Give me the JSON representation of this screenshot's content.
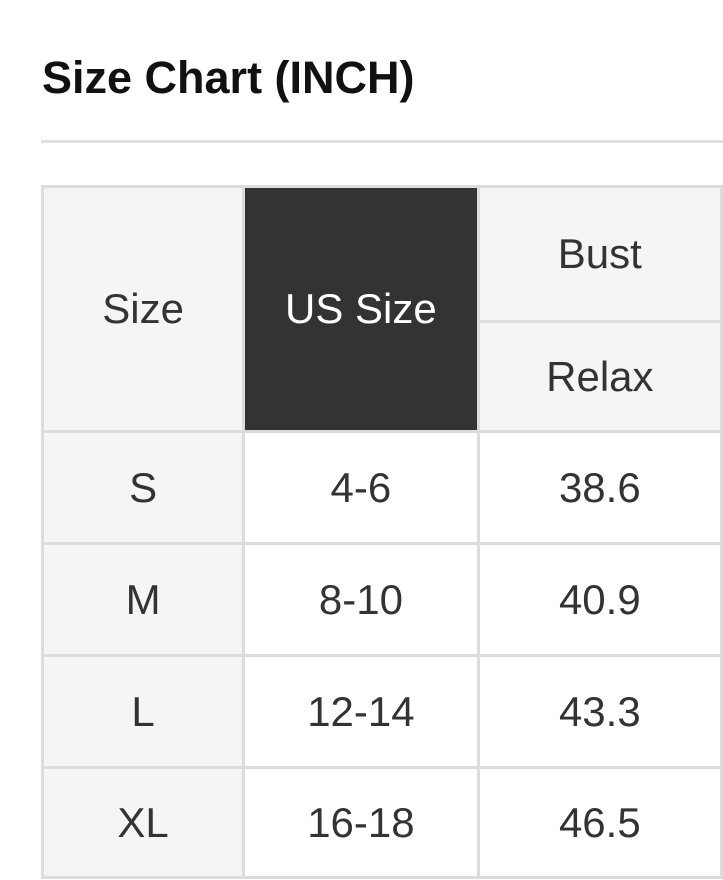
{
  "title": "Size Chart (INCH)",
  "table": {
    "headers": {
      "size": "Size",
      "us_size": "US Size",
      "bust": "Bust",
      "bust_sub": "Relax"
    },
    "rows": [
      {
        "size": "S",
        "us_size": "4-6",
        "bust": "38.6"
      },
      {
        "size": "M",
        "us_size": "8-10",
        "bust": "40.9"
      },
      {
        "size": "L",
        "us_size": "12-14",
        "bust": "43.3"
      },
      {
        "size": "XL",
        "us_size": "16-18",
        "bust": "46.5"
      }
    ]
  },
  "colors": {
    "header_dark": "#333333",
    "header_light": "#f4f5f7",
    "border": "#dcdcdc"
  }
}
